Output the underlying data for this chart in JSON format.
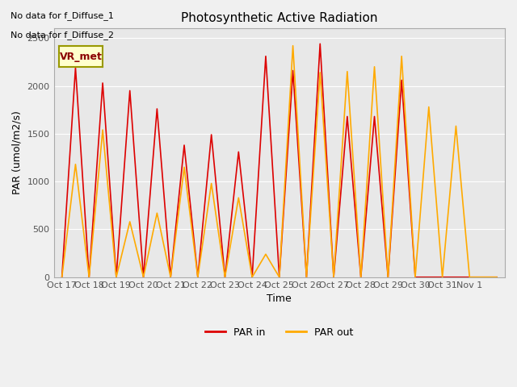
{
  "title": "Photosynthetic Active Radiation",
  "ylabel": "PAR (umol/m2/s)",
  "xlabel": "Time",
  "text_no_data_1": "No data for f_Diffuse_1",
  "text_no_data_2": "No data for f_Diffuse_2",
  "legend_box_label": "VR_met",
  "ylim": [
    0,
    2600
  ],
  "x_tick_labels": [
    "Oct 17",
    "Oct 18",
    "Oct 19",
    "Oct 20",
    "Oct 21",
    "Oct 22",
    "Oct 23",
    "Oct 24",
    "Oct 25",
    "Oct 26",
    "Oct 27",
    "Oct 28",
    "Oct 29",
    "Oct 30",
    "Oct 31",
    "Nov 1"
  ],
  "color_par_in": "#dd0000",
  "color_par_out": "#ffaa00",
  "background_color": "#f0f0f0",
  "plot_bg_color": "#e8e8e8",
  "legend_box_bg": "#ffffcc",
  "legend_box_border": "#999900",
  "par_in_x": [
    0,
    0.5,
    1,
    1.5,
    2,
    2.5,
    3,
    3.5,
    4,
    4.5,
    5,
    5.5,
    6,
    6.5,
    7,
    7.5,
    8,
    8.5,
    9,
    9.5,
    10,
    10.5,
    11,
    11.5,
    12,
    12.5,
    13,
    13.5,
    14,
    14.5,
    15,
    15.5,
    16
  ],
  "par_in_y": [
    0,
    2190,
    0,
    2030,
    0,
    1950,
    0,
    1760,
    0,
    1380,
    0,
    1490,
    0,
    1310,
    0,
    2310,
    0,
    2160,
    0,
    2440,
    0,
    1680,
    0,
    1680,
    0,
    2060,
    0,
    0,
    0,
    0,
    0,
    0,
    0
  ],
  "par_out_x": [
    0,
    0.5,
    1,
    1.5,
    2,
    2.5,
    3,
    3.5,
    4,
    4.5,
    5,
    5.5,
    6,
    6.5,
    7,
    7.5,
    8,
    8.5,
    9,
    9.5,
    10,
    10.5,
    11,
    11.5,
    12,
    12.5,
    13,
    13.5,
    14,
    14.5,
    15,
    15.5,
    16
  ],
  "par_out_y": [
    0,
    1180,
    0,
    1540,
    0,
    580,
    0,
    670,
    0,
    1150,
    0,
    980,
    0,
    830,
    0,
    240,
    0,
    2420,
    0,
    2140,
    0,
    2150,
    0,
    2200,
    0,
    2310,
    0,
    1780,
    0,
    1580,
    0,
    0,
    0
  ]
}
